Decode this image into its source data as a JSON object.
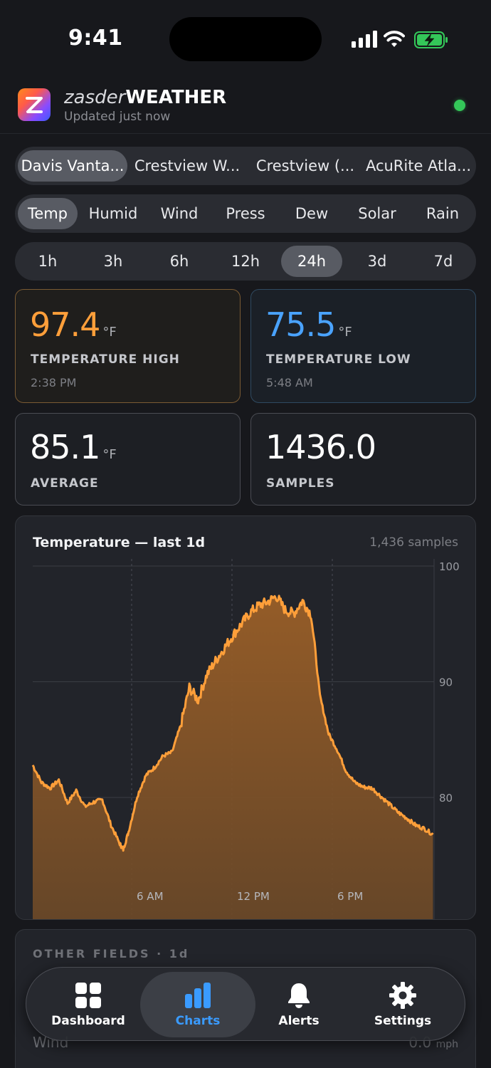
{
  "status_bar": {
    "time": "9:41"
  },
  "header": {
    "brand_light": "zasder",
    "brand_bold": "WEATHER",
    "updated": "Updated just now"
  },
  "stations": [
    "Davis Vanta...",
    "Crestview W...",
    "Crestview (...",
    "AcuRite Atla..."
  ],
  "fields": [
    "Temp",
    "Humid",
    "Wind",
    "Press",
    "Dew",
    "Solar",
    "Rain"
  ],
  "ranges": [
    "1h",
    "3h",
    "6h",
    "12h",
    "24h",
    "3d",
    "7d"
  ],
  "stats": {
    "high": {
      "value": "97.4",
      "unit": "°F",
      "label": "TEMPERATURE HIGH",
      "time": "2:38 PM"
    },
    "low": {
      "value": "75.5",
      "unit": "°F",
      "label": "TEMPERATURE LOW",
      "time": "5:48 AM"
    },
    "avg": {
      "value": "85.1",
      "unit": "°F",
      "label": "AVERAGE"
    },
    "samples": {
      "value": "1436.0",
      "label": "SAMPLES"
    }
  },
  "chart_card": {
    "title": "Temperature — last 1d",
    "count": "1,436 samples"
  },
  "chart_data": {
    "type": "area",
    "title": "Temperature — last 1d",
    "y_ticks": [
      "100",
      "90",
      "80"
    ],
    "x_ticks": [
      "6 AM",
      "12 PM",
      "6 PM"
    ],
    "ylim": [
      71,
      101
    ],
    "x_hours": [
      0,
      0.5,
      1,
      1.5,
      2,
      2.5,
      3,
      3.5,
      4,
      4.5,
      5,
      5.2,
      5.5,
      6,
      6.5,
      7,
      7.5,
      8,
      8.5,
      9,
      9.5,
      10,
      10.5,
      11,
      11.5,
      12,
      12.5,
      13,
      13.5,
      14,
      14.5,
      15,
      15.5,
      16,
      16.5,
      17,
      17.5,
      18,
      18.5,
      19,
      19.5,
      20,
      20.5,
      21,
      21.5,
      22,
      22.5,
      23
    ],
    "values": [
      82.8,
      81.3,
      80.8,
      81.5,
      79.5,
      80.6,
      79.2,
      79.6,
      79.8,
      77.6,
      76.0,
      75.5,
      77.0,
      80.1,
      81.9,
      82.6,
      83.6,
      83.9,
      86.2,
      89.5,
      88.4,
      90.6,
      91.8,
      92.9,
      94.0,
      95.0,
      96.0,
      96.6,
      96.9,
      97.4,
      96.2,
      95.9,
      97.0,
      95.8,
      88.8,
      85.5,
      84.1,
      82.3,
      81.3,
      80.9,
      80.8,
      80.1,
      79.4,
      78.7,
      78.2,
      77.6,
      77.3,
      76.8
    ],
    "color": "#ff9f3a",
    "grid": true
  },
  "other_fields": {
    "title": "OTHER FIELDS · 1d",
    "wind_label": "Wind",
    "wind_value": "0.0",
    "wind_unit": "mph"
  },
  "tabbar": {
    "dashboard": "Dashboard",
    "charts": "Charts",
    "alerts": "Alerts",
    "settings": "Settings"
  }
}
